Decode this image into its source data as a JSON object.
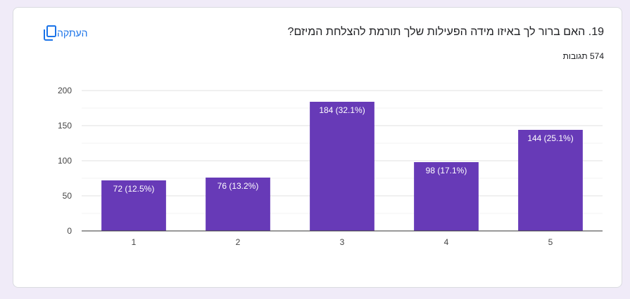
{
  "question": {
    "title": "19. האם ברור לך באיזו מידה הפעילות שלך תורמת להצלחת המיזם?",
    "responses": "574 תגובות"
  },
  "copy_button": {
    "label": "העתקה",
    "icon": "copy-icon"
  },
  "colors": {
    "bar": "#673ab7",
    "accent": "#1a73e8",
    "background": "#f0ebf8"
  },
  "chart_data": {
    "type": "bar",
    "categories": [
      "1",
      "2",
      "3",
      "4",
      "5"
    ],
    "values": [
      72,
      76,
      184,
      98,
      144
    ],
    "data_labels": [
      "72 (12.5%)",
      "76 (13.2%)",
      "184 (32.1%)",
      "98 (17.1%)",
      "144 (25.1%)"
    ],
    "yticks": [
      "0",
      "50",
      "100",
      "150",
      "200"
    ],
    "ylim": [
      0,
      200
    ],
    "grid": true,
    "legend": "none"
  }
}
